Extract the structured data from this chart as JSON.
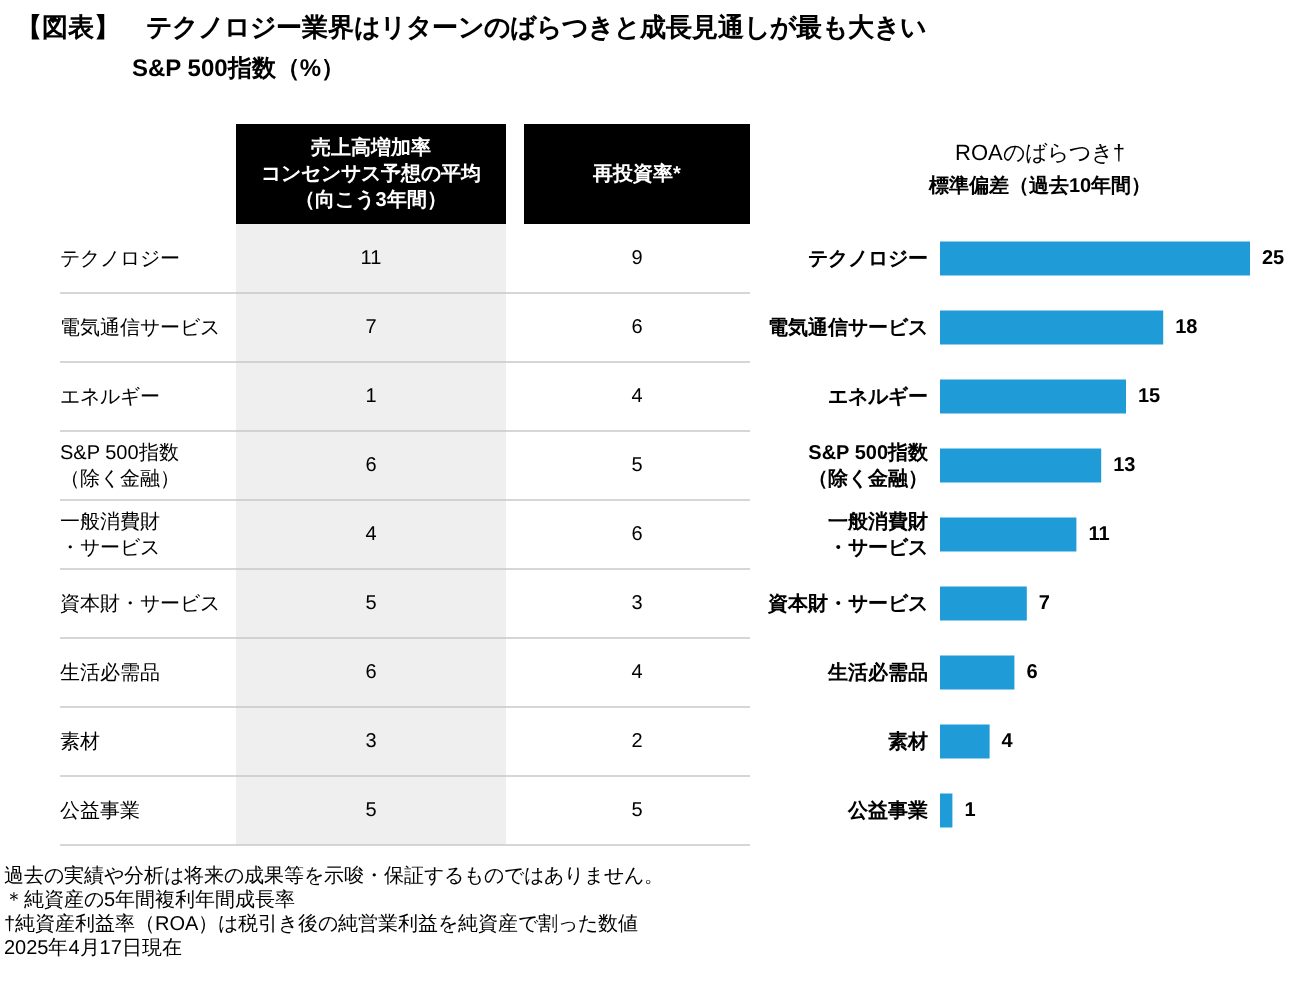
{
  "chart_data": [
    {
      "type": "other",
      "title": "【図表】　テクノロジー業界はリターンのばらつきと成長見通しが最も大きい",
      "subtitle": "S&P 500指数（%）",
      "categories": [
        "テクノロジー",
        "電気通信サービス",
        "エネルギー",
        "S&P 500指数（除く金融）",
        "一般消費財・サービス",
        "資本財・サービス",
        "生活必需品",
        "素材",
        "公益事業"
      ],
      "series": [
        {
          "name": "売上高増加率コンセンサス予想の平均（向こう3年間）",
          "values": [
            11,
            7,
            1,
            6,
            4,
            5,
            6,
            3,
            5
          ]
        },
        {
          "name": "再投資率*",
          "values": [
            9,
            6,
            4,
            5,
            6,
            3,
            4,
            2,
            5
          ]
        }
      ],
      "data_labels": true,
      "annotations": [
        "過去の実績や分析は将来の成果等を示唆・保証するものではありません。",
        "＊純資産の5年間複利年間成長率",
        "†純資産利益率（ROA）は税引き後の純営業利益を純資産で割った数値",
        "2025年4月17日現在"
      ]
    },
    {
      "type": "bar",
      "orientation": "horizontal",
      "title": "ROAのばらつき†",
      "subtitle": "標準偏差（過去10年間）",
      "categories": [
        "テクノロジー",
        "電気通信サービス",
        "エネルギー",
        "S&P 500指数（除く金融）",
        "一般消費財・サービス",
        "資本財・サービス",
        "生活必需品",
        "素材",
        "公益事業"
      ],
      "values": [
        25,
        18,
        15,
        13,
        11,
        7,
        6,
        4,
        1
      ],
      "color": "#1f9bd7",
      "data_labels": true
    }
  ]
}
